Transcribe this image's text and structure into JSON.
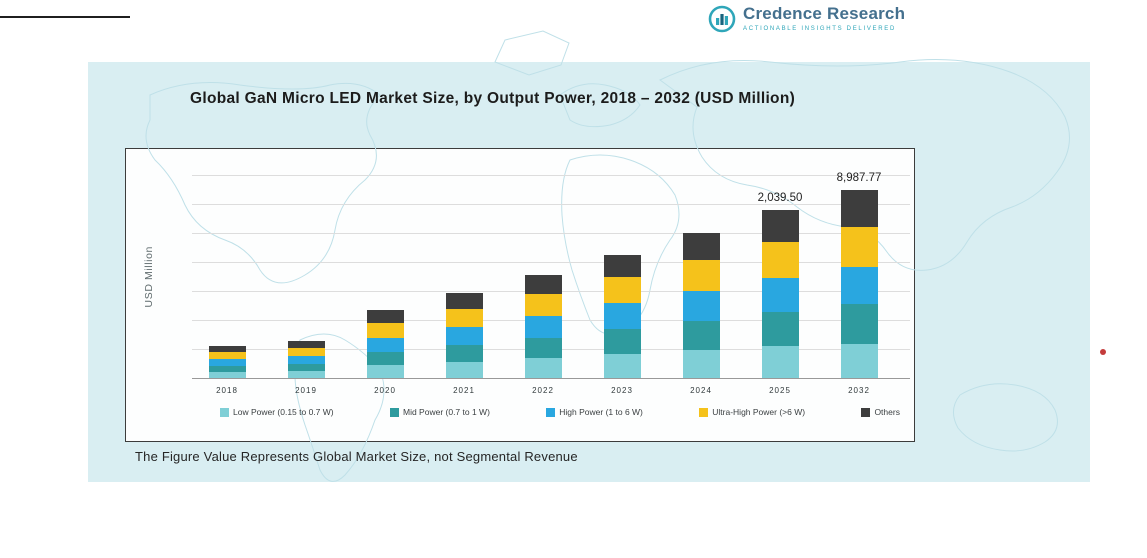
{
  "header": {
    "brand": "Credence Research",
    "tagline": "Actionable Insights Delivered"
  },
  "panel": {
    "note": "The Figure Value Represents Global Market Size, not Segmental Revenue"
  },
  "chart_data": {
    "type": "bar",
    "stacked": true,
    "title": "Global GaN Micro LED Market Size, by Output Power, 2018 – 2032 (USD Million)",
    "ylabel": "USD Million",
    "xlabel": "",
    "grid": true,
    "legend_position": "bottom",
    "categories": [
      "2018",
      "2019",
      "2020",
      "2021",
      "2022",
      "2023",
      "2024",
      "2025",
      "2032"
    ],
    "series": [
      {
        "name": "Low Power (0.15 to 0.7 W)",
        "color": "#7FCFD6",
        "heights": [
          6,
          7,
          13,
          16,
          20,
          24,
          28,
          32,
          34
        ]
      },
      {
        "name": "Mid Power (0.7 to 1 W)",
        "color": "#2E9B9E",
        "heights": [
          6,
          7,
          13,
          17,
          20,
          25,
          29,
          34,
          40
        ]
      },
      {
        "name": "High Power (1 to 6 W)",
        "color": "#29A7E0",
        "heights": [
          7,
          8,
          14,
          18,
          22,
          26,
          30,
          34,
          37
        ]
      },
      {
        "name": "Ultra-High Power (>6 W)",
        "color": "#F5C21B",
        "heights": [
          7,
          8,
          15,
          18,
          22,
          26,
          31,
          36,
          40
        ]
      },
      {
        "name": "Others",
        "color": "#3D3D3D",
        "heights": [
          6,
          7,
          13,
          16,
          19,
          22,
          27,
          32,
          37
        ]
      }
    ],
    "labeled_totals": {
      "2025": 2039.5,
      "2032": 8987.77
    },
    "data_labels": [
      {
        "category": "2025",
        "value": "2,039.50"
      },
      {
        "category": "2032",
        "value": "8,987.77"
      }
    ]
  }
}
